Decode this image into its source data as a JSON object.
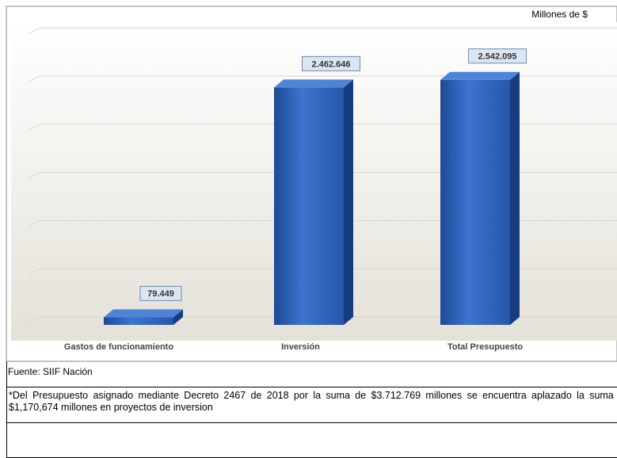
{
  "chart_data": {
    "type": "bar3d",
    "unit": "Millones de $",
    "categories": [
      "Gastos de funcionamiento",
      "Inversión",
      "Total Presupuesto"
    ],
    "values": [
      79449,
      2462646,
      2542095
    ],
    "value_labels": [
      "79.449",
      "2.462.646",
      "2.542.095"
    ],
    "color": "#2e62b8",
    "ylim": [
      0,
      3000000
    ],
    "yticks": [
      0,
      500000,
      1000000,
      1500000,
      2000000,
      2500000,
      3000000
    ],
    "grid": true
  },
  "source": "Fuente:  SIIF Nación",
  "note": "*Del Presupuesto asignado mediante Decreto 2467 de 2018 por la suma de $3.712.769 millones se encuentra  aplazado la suma de $1,170,674 millones en proyectos de inversion"
}
